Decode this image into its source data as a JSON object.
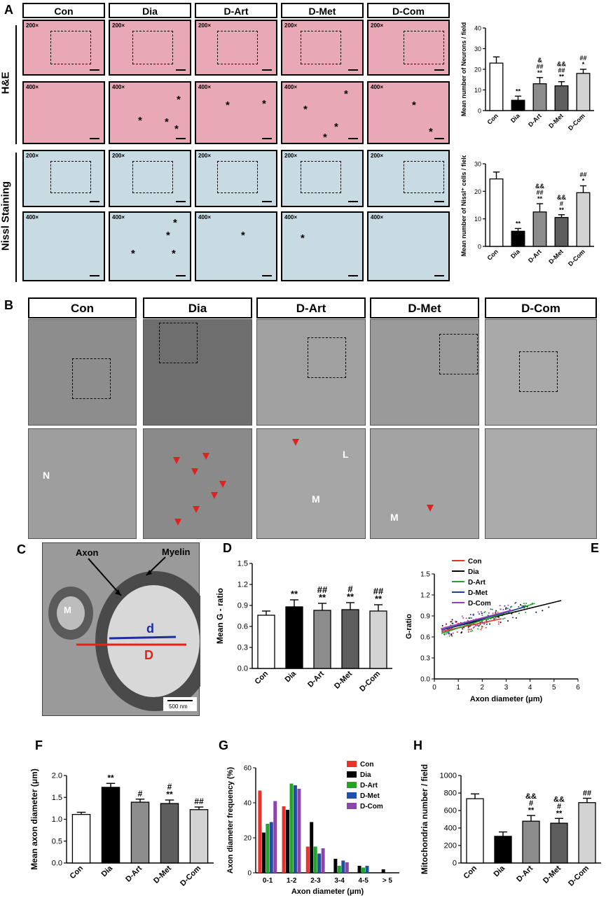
{
  "panel_labels": {
    "A": "A",
    "B": "B",
    "C": "C",
    "D": "D",
    "E": "E",
    "F": "F",
    "G": "G",
    "H": "H"
  },
  "groups": [
    "Con",
    "Dia",
    "D-Art",
    "D-Met",
    "D-Com"
  ],
  "panelA": {
    "stain_he": "H&E",
    "stain_nissl": "Nissl Staining",
    "mag_low": "200×",
    "mag_high": "400×"
  },
  "panelB": {
    "labels": {
      "N": "N",
      "L": "L",
      "M": "M"
    }
  },
  "panelC": {
    "axon": "Axon",
    "myelin": "Myelin",
    "d": "d",
    "D": "D",
    "m": "M",
    "scale": "500 nm"
  },
  "chart_data": [
    {
      "id": "A-neurons",
      "type": "bar",
      "ylabel": "Mean number of Neurons / field",
      "categories": [
        "Con",
        "Dia",
        "D-Art",
        "D-Met",
        "D-Com"
      ],
      "values": [
        23,
        5,
        13,
        12,
        18
      ],
      "errors": [
        3,
        2,
        3,
        2,
        2
      ],
      "annotations": [
        [],
        [
          "**"
        ],
        [
          "&",
          "##",
          "**"
        ],
        [
          "&&",
          "##",
          "**"
        ],
        [
          "##",
          "*"
        ]
      ],
      "ylim": [
        0,
        40
      ],
      "yticks": [
        0,
        10,
        20,
        30,
        40
      ],
      "colors": [
        "#ffffff",
        "#000000",
        "#8c8c8c",
        "#5e5e5e",
        "#d3d3d3"
      ]
    },
    {
      "id": "A-nissl",
      "type": "bar",
      "ylabel": "Mean number of Nissl⁺ cells / field",
      "categories": [
        "Con",
        "Dia",
        "D-Art",
        "D-Met",
        "D-Com"
      ],
      "values": [
        24.5,
        5.5,
        12.5,
        10.5,
        19.5
      ],
      "errors": [
        2.5,
        1,
        3,
        1,
        2.5
      ],
      "annotations": [
        [],
        [
          "**"
        ],
        [
          "&&",
          "##",
          "**"
        ],
        [
          "&&",
          "#",
          "**"
        ],
        [
          "##",
          "*"
        ]
      ],
      "ylim": [
        0,
        30
      ],
      "yticks": [
        0,
        10,
        20,
        30
      ],
      "colors": [
        "#ffffff",
        "#000000",
        "#8c8c8c",
        "#5e5e5e",
        "#d3d3d3"
      ]
    },
    {
      "id": "D",
      "type": "bar",
      "ylabel": "Mean G - ratio",
      "categories": [
        "Con",
        "Dia",
        "D-Art",
        "D-Met",
        "D-Com"
      ],
      "values": [
        0.76,
        0.88,
        0.83,
        0.84,
        0.82
      ],
      "errors": [
        0.06,
        0.1,
        0.1,
        0.1,
        0.09
      ],
      "annotations": [
        [],
        [
          "**"
        ],
        [
          "##",
          "**"
        ],
        [
          "#",
          "**"
        ],
        [
          "##",
          "**"
        ]
      ],
      "ylim": [
        0,
        1.5
      ],
      "yticks": [
        "0.0",
        "0.3",
        "0.6",
        "0.9",
        "1.2",
        "1.5"
      ],
      "colors": [
        "#ffffff",
        "#000000",
        "#8c8c8c",
        "#5e5e5e",
        "#d3d3d3"
      ]
    },
    {
      "id": "E",
      "type": "scatter",
      "ylabel": "G-ratio",
      "xlabel": "Axon diameter (μm)",
      "xlim": [
        0,
        6
      ],
      "ylim": [
        0,
        1.5
      ],
      "xticks": [
        "0",
        "1",
        "2",
        "3",
        "4",
        "5",
        "6"
      ],
      "yticks": [
        "0.0",
        "0.3",
        "0.6",
        "0.9",
        "1.2",
        "1.5"
      ],
      "series": [
        {
          "name": "Con",
          "color": "#e8322b",
          "line": [
            [
              0.3,
              0.68
            ],
            [
              2.8,
              0.86
            ]
          ]
        },
        {
          "name": "Dia",
          "color": "#000000",
          "line": [
            [
              0.3,
              0.7
            ],
            [
              5.3,
              1.12
            ]
          ]
        },
        {
          "name": "D-Art",
          "color": "#1fa52a",
          "line": [
            [
              0.3,
              0.65
            ],
            [
              4.2,
              1.08
            ]
          ]
        },
        {
          "name": "D-Met",
          "color": "#1f3fa0",
          "line": [
            [
              0.3,
              0.7
            ],
            [
              3.8,
              1.03
            ]
          ]
        },
        {
          "name": "D-Com",
          "color": "#9b3fb5",
          "line": [
            [
              0.3,
              0.72
            ],
            [
              3.2,
              0.98
            ]
          ]
        }
      ]
    },
    {
      "id": "F",
      "type": "bar",
      "ylabel": "Mean axon diameter (μm)",
      "categories": [
        "Con",
        "Dia",
        "D-Art",
        "D-Met",
        "D-Com"
      ],
      "values": [
        1.11,
        1.73,
        1.39,
        1.36,
        1.22
      ],
      "errors": [
        0.05,
        0.09,
        0.07,
        0.08,
        0.06
      ],
      "annotations": [
        [],
        [
          "**"
        ],
        [
          "#"
        ],
        [
          "#",
          "**"
        ],
        [
          "##"
        ]
      ],
      "ylim": [
        0,
        2.0
      ],
      "yticks": [
        "0.0",
        "0.5",
        "1.0",
        "1.5",
        "2.0"
      ],
      "colors": [
        "#ffffff",
        "#000000",
        "#8c8c8c",
        "#5e5e5e",
        "#d3d3d3"
      ]
    },
    {
      "id": "G",
      "type": "bar",
      "ylabel": "Axon diameter frequency (%)",
      "xlabel": "Axon diameter (μm)",
      "categories": [
        "0-1",
        "1-2",
        "2-3",
        "3-4",
        "4-5",
        "> 5"
      ],
      "series": [
        {
          "name": "Con",
          "color": "#e8322b",
          "values": [
            47,
            38,
            15,
            0,
            0,
            0
          ]
        },
        {
          "name": "Dia",
          "color": "#000000",
          "values": [
            23,
            36,
            29,
            8,
            4,
            2
          ]
        },
        {
          "name": "D-Art",
          "color": "#1fa52a",
          "values": [
            28,
            51,
            15,
            4,
            3,
            0
          ]
        },
        {
          "name": "D-Met",
          "color": "#1f4fa8",
          "values": [
            29,
            50,
            11,
            7,
            4,
            0
          ]
        },
        {
          "name": "D-Com",
          "color": "#8e44ad",
          "values": [
            41,
            48,
            14,
            6,
            0,
            0
          ]
        }
      ],
      "ylim": [
        0,
        60
      ],
      "yticks": [
        0,
        20,
        40,
        60
      ]
    },
    {
      "id": "H",
      "type": "bar",
      "ylabel": "Mitochondria number / field",
      "categories": [
        "Con",
        "Dia",
        "D-Art",
        "D-Met",
        "D-Com"
      ],
      "values": [
        735,
        305,
        478,
        455,
        690
      ],
      "errors": [
        55,
        50,
        65,
        55,
        50
      ],
      "annotations": [
        [],
        [],
        [
          "&&",
          "#",
          "**"
        ],
        [
          "&&",
          "#",
          "**"
        ],
        [
          "##"
        ]
      ],
      "ylim": [
        0,
        1000
      ],
      "yticks": [
        0,
        200,
        400,
        600,
        800,
        1000
      ],
      "colors": [
        "#ffffff",
        "#000000",
        "#8c8c8c",
        "#5e5e5e",
        "#d3d3d3"
      ]
    }
  ]
}
